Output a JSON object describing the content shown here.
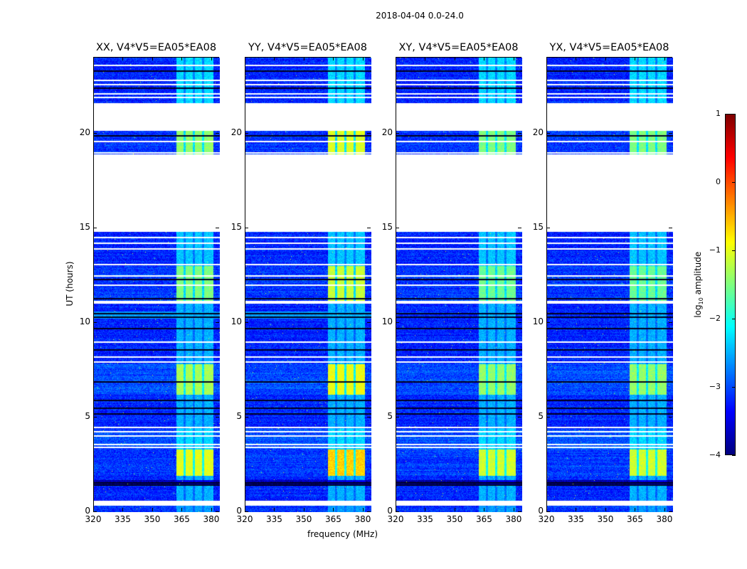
{
  "chart_data": {
    "type": "heatmap",
    "title": "2018-04-04 0.0-24.0",
    "xlabel": "frequency (MHz)",
    "ylabel": "UT (hours)",
    "xlim": [
      320,
      384
    ],
    "ylim": [
      0,
      24
    ],
    "xticks": [
      "320",
      "335",
      "350",
      "365",
      "380"
    ],
    "xtick_values": [
      320,
      335,
      350,
      365,
      380
    ],
    "yticks": [
      "0",
      "5",
      "10",
      "15",
      "20"
    ],
    "ytick_values": [
      0,
      5,
      10,
      15,
      20
    ],
    "colorbar": {
      "label_main": "log",
      "label_sub": "10",
      "label_rest": " amplitude",
      "range": [
        -4,
        1
      ],
      "ticks": [
        "1",
        "0",
        "−1",
        "−2",
        "−3",
        "−4"
      ],
      "tick_values": [
        1,
        0,
        -1,
        -2,
        -3,
        -4
      ],
      "colormap": "jet"
    },
    "panels": [
      {
        "title": "XX, V4*V5=EA05*EA08",
        "band_offset": 0,
        "cyan_stripe": true
      },
      {
        "title": "YY, V4*V5=EA05*EA08",
        "band_offset": 0.35,
        "cyan_stripe": true
      },
      {
        "title": "XY, V4*V5=EA05*EA08",
        "band_offset": -0.1,
        "cyan_stripe": false
      },
      {
        "title": "YX, V4*V5=EA05*EA08",
        "band_offset": -0.1,
        "cyan_stripe": false
      }
    ],
    "band_channels_mhz": [
      [
        362,
        365.5
      ],
      [
        366.5,
        370.2
      ],
      [
        371.2,
        375
      ],
      [
        376,
        380.8
      ]
    ],
    "segments_hours": [
      {
        "t": [
          0,
          0.4
        ],
        "base": -3.1,
        "band": -2.6
      },
      {
        "t": [
          0.6,
          1.4
        ],
        "base": -3.2,
        "band": -2.5
      },
      {
        "t": [
          1.4,
          1.7
        ],
        "base": -3.8,
        "band": -3.5
      },
      {
        "t": [
          1.7,
          1.9
        ],
        "base": -3.2,
        "band": -2.5
      },
      {
        "t": [
          1.9,
          3.3
        ],
        "base": -3.1,
        "band": -1.0
      },
      {
        "t": [
          3.3,
          4.4
        ],
        "base": -3.0,
        "band": -2.3
      },
      {
        "t": [
          4.4,
          6.2
        ],
        "base": -3.2,
        "band": -2.5
      },
      {
        "t": [
          6.2,
          7.8
        ],
        "base": -3.0,
        "band": -1.3
      },
      {
        "t": [
          7.8,
          11.1
        ],
        "base": -3.2,
        "band": -2.5
      },
      {
        "t": [
          11.1,
          13.0
        ],
        "base": -3.1,
        "band": -1.5
      },
      {
        "t": [
          13.0,
          14.8
        ],
        "base": -3.2,
        "band": -2.4
      },
      {
        "t": [
          18.9,
          20.15
        ],
        "base": -3.1,
        "band": -1.4
      },
      {
        "t": [
          21.6,
          24
        ],
        "base": -3.2,
        "band": -2.3
      }
    ],
    "cyan_stripe_hours": [
      10.2,
      10.6
    ],
    "white_lines_hours": [
      0.4,
      0.5,
      0.55,
      3.45,
      3.6,
      4.05,
      4.25,
      4.5,
      7.95,
      8.2,
      9.0,
      11.05,
      11.15,
      12.0,
      12.5,
      13.1,
      13.9,
      14.2,
      14.5,
      19.0,
      19.6,
      21.9,
      22.1,
      22.6,
      22.8,
      23.6
    ],
    "dark_lines_hours": [
      1.45,
      1.55,
      5.2,
      5.5,
      5.9,
      6.9,
      8.6,
      9.7,
      10.3,
      10.5,
      11.3,
      12.3,
      19.9,
      20.7,
      22.4,
      23.3
    ]
  }
}
